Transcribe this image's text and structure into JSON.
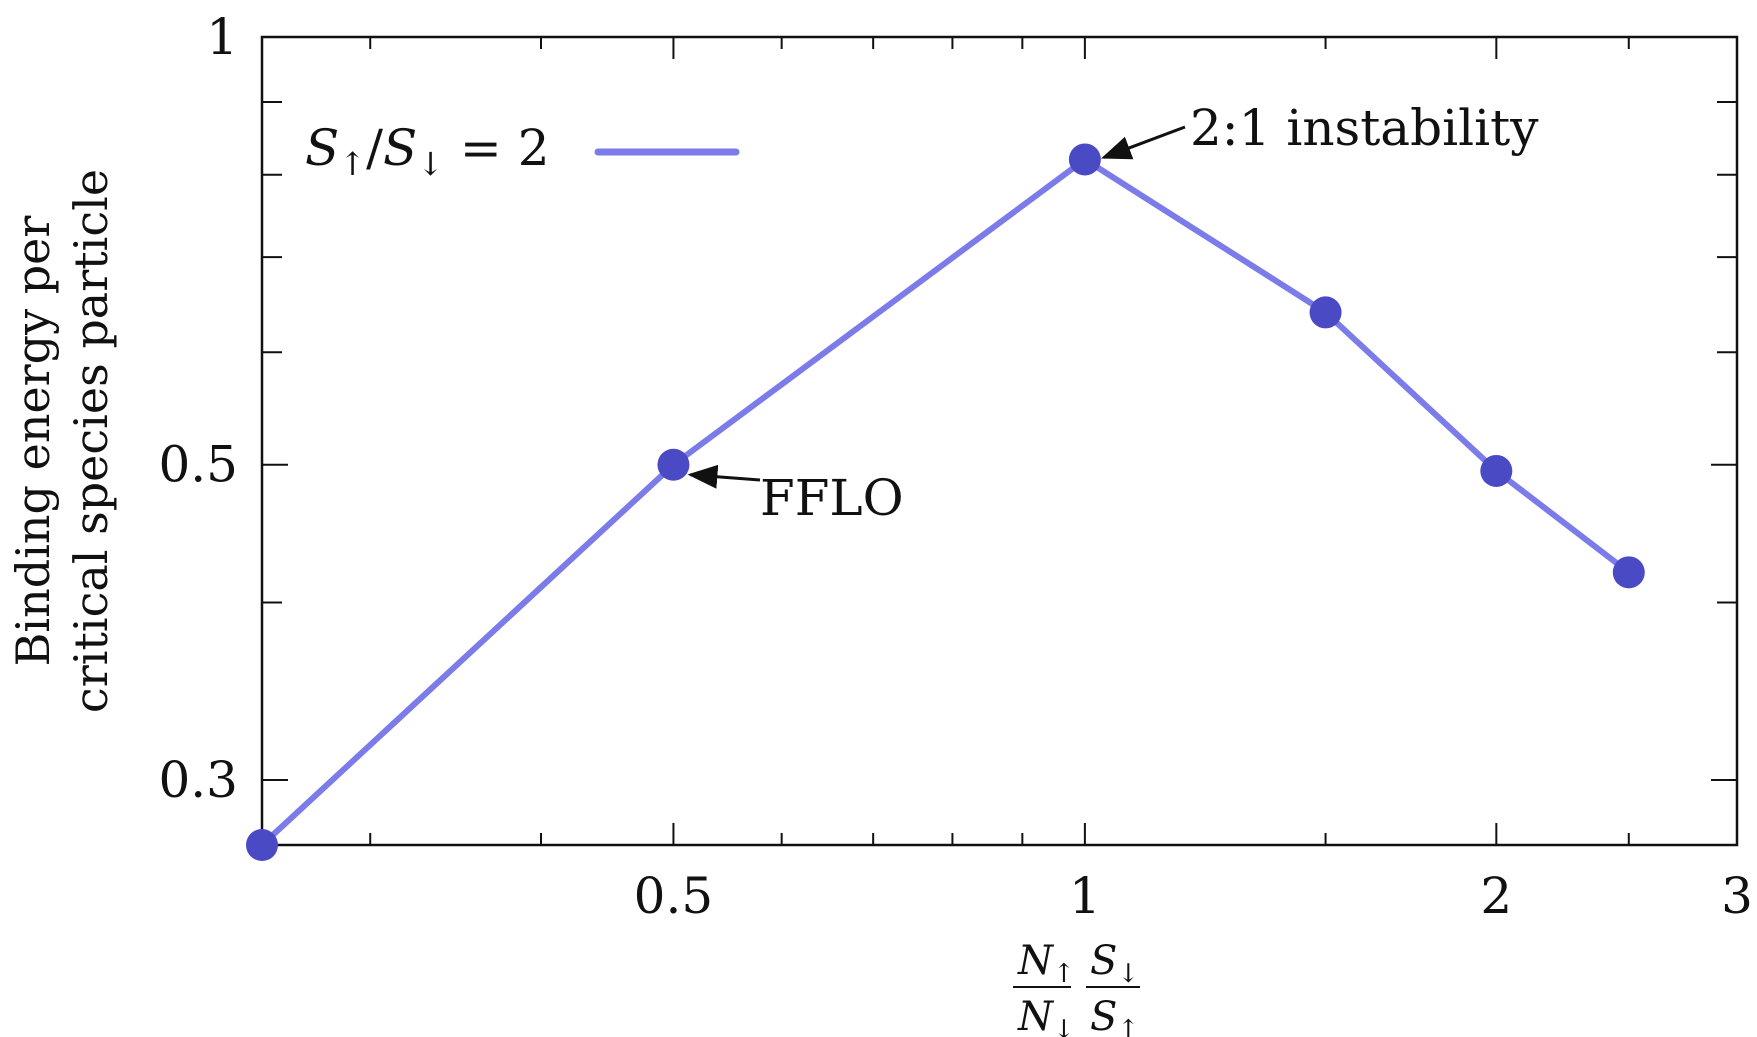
{
  "chart_data": {
    "type": "line",
    "xscale": "log",
    "yscale": "log",
    "xlim": [
      0.25,
      3
    ],
    "ylim": [
      0.27,
      1
    ],
    "xticks": [
      0.5,
      1,
      2,
      3
    ],
    "xtick_labels": [
      "0.5",
      "1",
      "2",
      "3"
    ],
    "yticks": [
      0.3,
      0.5,
      1
    ],
    "ytick_labels": [
      "0.3",
      "0.5",
      "1"
    ],
    "ylabel_lines": [
      "Binding energy per",
      "critical species particle"
    ],
    "xlabel": {
      "num_a": "N",
      "num_a_sub": "↑",
      "den_a": "N",
      "den_a_sub": "↓",
      "num_b": "S",
      "num_b_sub": "↓",
      "den_b": "S",
      "den_b_sub": "↑"
    },
    "legend": {
      "placement": "top-left",
      "label": {
        "s1": "S",
        "sub1": "↑",
        "slash": "/",
        "s2": "S",
        "sub2": "↓",
        "rhs": " = 2"
      }
    },
    "series": [
      {
        "color": "#7b7bea",
        "marker_color": "#4a4ac4",
        "x": [
          0.25,
          0.5,
          1.0,
          1.5,
          2.0,
          2.5
        ],
        "y": [
          0.27,
          0.5,
          0.82,
          0.64,
          0.495,
          0.42
        ]
      }
    ],
    "annotations": [
      {
        "text": "2:1 instability",
        "x": 1.0,
        "y": 0.82
      },
      {
        "text": "FFLO",
        "x": 0.5,
        "y": 0.5
      }
    ],
    "grid": false
  }
}
